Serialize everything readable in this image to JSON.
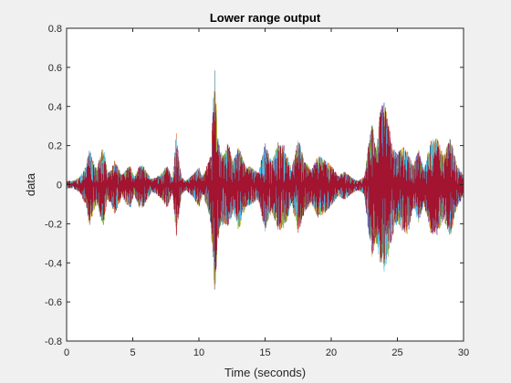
{
  "chart_data": {
    "type": "line",
    "title": "Lower range output",
    "xlabel": "Time (seconds)",
    "ylabel": "data",
    "xlim": [
      0,
      30
    ],
    "ylim": [
      -0.8,
      0.8
    ],
    "xticks": [
      0,
      5,
      10,
      15,
      20,
      25,
      30
    ],
    "xtick_labels": [
      "0",
      "5",
      "10",
      "15",
      "20",
      "25",
      "30"
    ],
    "yticks": [
      -0.8,
      -0.6,
      -0.4,
      -0.2,
      0,
      0.2,
      0.4,
      0.6,
      0.8
    ],
    "ytick_labels": [
      "-0.8",
      "-0.6",
      "-0.4",
      "-0.2",
      "0",
      "0.2",
      "0.4",
      "0.6",
      "0.8"
    ],
    "grid": false,
    "series_colors": [
      "#0072bd",
      "#d95319",
      "#edb120",
      "#7e2f8e",
      "#77ac30",
      "#4dbeee",
      "#a2142f"
    ],
    "envelope": {
      "x": [
        0,
        0.5,
        1,
        1.5,
        1.7,
        2.0,
        2.3,
        2.6,
        2.8,
        3.1,
        3.4,
        3.6,
        3.9,
        4.2,
        4.5,
        4.8,
        5.1,
        5.5,
        5.8,
        6.1,
        6.4,
        6.8,
        7.2,
        7.6,
        8.0,
        8.3,
        8.5,
        8.7,
        9.0,
        9.5,
        10.0,
        10.3,
        10.6,
        10.9,
        11.2,
        11.4,
        11.6,
        11.9,
        12.2,
        12.6,
        13.0,
        13.5,
        14.0,
        14.5,
        15.0,
        15.5,
        16.0,
        16.5,
        17.0,
        17.5,
        18.0,
        18.5,
        19.0,
        19.5,
        20.0,
        20.5,
        21.0,
        21.5,
        22.0,
        22.5,
        22.8,
        23.1,
        23.4,
        23.7,
        24.0,
        24.3,
        24.6,
        25.0,
        25.4,
        25.8,
        26.2,
        26.6,
        27.0,
        27.5,
        28.0,
        28.5,
        29.0,
        29.5,
        30.0
      ],
      "upper": [
        0.02,
        0.02,
        0.04,
        0.1,
        0.2,
        0.12,
        0.08,
        0.17,
        0.2,
        0.06,
        0.08,
        0.13,
        0.09,
        0.05,
        0.08,
        0.1,
        0.04,
        0.1,
        0.1,
        0.06,
        0.03,
        0.04,
        0.06,
        0.1,
        0.03,
        0.28,
        0.12,
        0.04,
        0.02,
        0.05,
        0.09,
        0.04,
        0.1,
        0.15,
        0.63,
        0.27,
        0.18,
        0.16,
        0.22,
        0.12,
        0.2,
        0.1,
        0.09,
        0.06,
        0.22,
        0.12,
        0.22,
        0.2,
        0.08,
        0.24,
        0.12,
        0.08,
        0.15,
        0.13,
        0.1,
        0.05,
        0.07,
        0.04,
        0.02,
        0.04,
        0.2,
        0.32,
        0.18,
        0.38,
        0.44,
        0.33,
        0.2,
        0.16,
        0.2,
        0.17,
        0.1,
        0.18,
        0.08,
        0.23,
        0.24,
        0.15,
        0.24,
        0.1,
        0.05
      ],
      "lower": [
        -0.02,
        -0.02,
        -0.04,
        -0.12,
        -0.22,
        -0.15,
        -0.1,
        -0.18,
        -0.22,
        -0.08,
        -0.1,
        -0.16,
        -0.11,
        -0.06,
        -0.1,
        -0.12,
        -0.05,
        -0.12,
        -0.12,
        -0.08,
        -0.04,
        -0.05,
        -0.08,
        -0.12,
        -0.04,
        -0.27,
        -0.15,
        -0.05,
        -0.03,
        -0.06,
        -0.12,
        -0.05,
        -0.12,
        -0.2,
        -0.58,
        -0.3,
        -0.22,
        -0.2,
        -0.22,
        -0.14,
        -0.24,
        -0.12,
        -0.1,
        -0.08,
        -0.24,
        -0.14,
        -0.24,
        -0.22,
        -0.1,
        -0.25,
        -0.14,
        -0.1,
        -0.17,
        -0.15,
        -0.11,
        -0.06,
        -0.08,
        -0.05,
        -0.03,
        -0.05,
        -0.25,
        -0.38,
        -0.3,
        -0.4,
        -0.45,
        -0.38,
        -0.27,
        -0.2,
        -0.24,
        -0.26,
        -0.12,
        -0.2,
        -0.1,
        -0.25,
        -0.26,
        -0.18,
        -0.27,
        -0.12,
        -0.06
      ]
    },
    "num_series": 7
  }
}
